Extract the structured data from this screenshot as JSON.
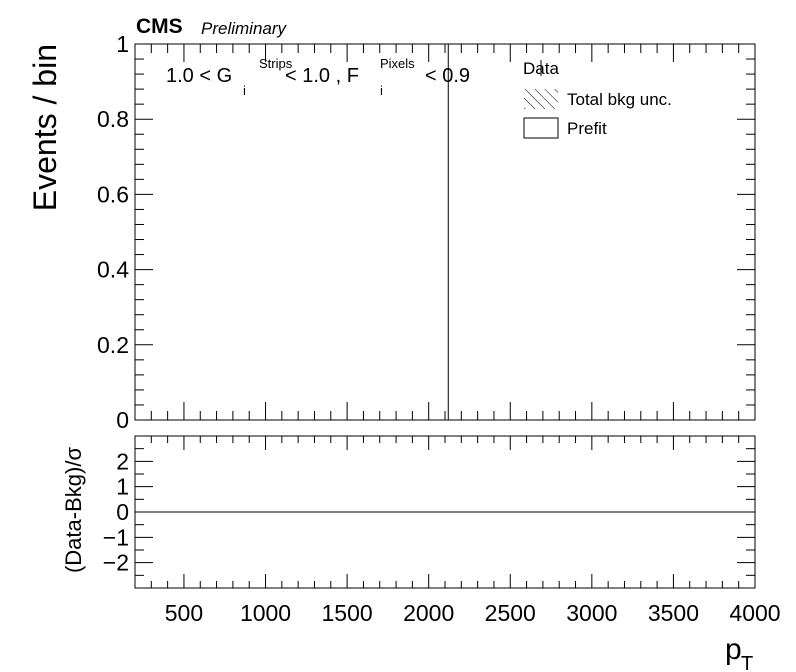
{
  "chart_data": [
    {
      "type": "line",
      "experiment": "CMS",
      "status": "Preliminary",
      "ylabel": "Events / bin",
      "ylim": [
        0,
        1
      ],
      "xlim": [
        200,
        4000
      ],
      "yticks": [
        "0",
        "0.2",
        "0.4",
        "0.6",
        "0.8",
        "1"
      ],
      "ytick_values": [
        0,
        0.2,
        0.4,
        0.6,
        0.8,
        1.0
      ],
      "selection": {
        "lo": "1.0 < G",
        "g_sup": "Strips",
        "g_sub": "i",
        "mid": " < 1.0 , F",
        "f_sup": "Pixels",
        "f_sub": "i",
        "hi": " < 0.9"
      },
      "vertical_line_x": 2120,
      "legend": {
        "placement": "top-right",
        "entries": [
          "Data",
          "Total bkg unc.",
          "Prefit"
        ]
      },
      "series": []
    },
    {
      "type": "line",
      "ylabel": "(Data-Bkg)/σ",
      "ylim": [
        -3,
        3
      ],
      "xlim": [
        200,
        4000
      ],
      "yticks": [
        "−2",
        "−1",
        "0",
        "1",
        "2"
      ],
      "ytick_values": [
        -2,
        -1,
        0,
        1,
        2
      ],
      "xticks": [
        "500",
        "1000",
        "1500",
        "2000",
        "2500",
        "3000",
        "3500",
        "4000"
      ],
      "xtick_values": [
        500,
        1000,
        1500,
        2000,
        2500,
        3000,
        3500,
        4000
      ],
      "xlabel": "p",
      "xlabel_sub": "T",
      "reference_line_y": 0
    }
  ]
}
